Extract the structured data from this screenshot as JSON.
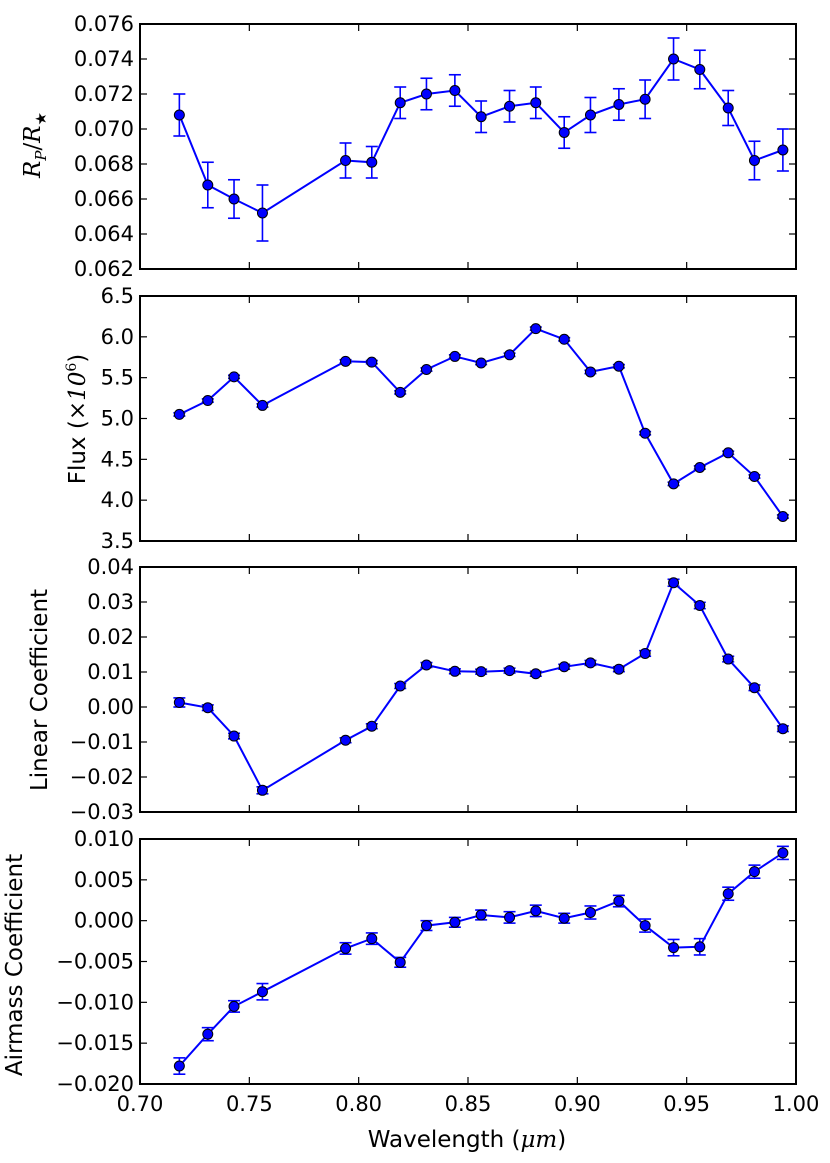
{
  "chart_data": [
    {
      "type": "line",
      "ylabel_parts": [
        "R",
        "P",
        "/",
        "R",
        "★"
      ],
      "ylim": [
        0.062,
        0.076
      ],
      "yticks": [
        "0.062",
        "0.064",
        "0.066",
        "0.068",
        "0.070",
        "0.072",
        "0.074",
        "0.076"
      ],
      "xlim": [
        0.7,
        1.0
      ],
      "grid": false,
      "series": [
        {
          "color": "#0000ff",
          "x": [
            0.718,
            0.731,
            0.743,
            0.756,
            0.794,
            0.806,
            0.819,
            0.831,
            0.844,
            0.856,
            0.869,
            0.881,
            0.894,
            0.906,
            0.919,
            0.931,
            0.944,
            0.956,
            0.969,
            0.981,
            0.994
          ],
          "y": [
            0.0708,
            0.0668,
            0.066,
            0.0652,
            0.0682,
            0.0681,
            0.0715,
            0.072,
            0.0722,
            0.0707,
            0.0713,
            0.0715,
            0.0698,
            0.0708,
            0.0714,
            0.0717,
            0.074,
            0.0734,
            0.0712,
            0.0682,
            0.0688
          ],
          "yerr": [
            0.0012,
            0.0013,
            0.0011,
            0.0016,
            0.001,
            0.0009,
            0.0009,
            0.0009,
            0.0009,
            0.0009,
            0.0009,
            0.0009,
            0.0009,
            0.001,
            0.0009,
            0.0011,
            0.0012,
            0.0011,
            0.001,
            0.0011,
            0.0012
          ]
        }
      ]
    },
    {
      "type": "line",
      "ylabel_text": "Flux (",
      "ylabel_math": "×10",
      "ylabel_sup": "6",
      "ylabel_end": ")",
      "ylim": [
        3.5,
        6.5
      ],
      "yticks": [
        "3.5",
        "4.0",
        "4.5",
        "5.0",
        "5.5",
        "6.0",
        "6.5"
      ],
      "xlim": [
        0.7,
        1.0
      ],
      "grid": false,
      "series": [
        {
          "color": "#0000ff",
          "x": [
            0.718,
            0.731,
            0.743,
            0.756,
            0.794,
            0.806,
            0.819,
            0.831,
            0.844,
            0.856,
            0.869,
            0.881,
            0.894,
            0.906,
            0.919,
            0.931,
            0.944,
            0.956,
            0.969,
            0.981,
            0.994
          ],
          "y": [
            5.05,
            5.22,
            5.51,
            5.16,
            5.7,
            5.69,
            5.32,
            5.6,
            5.76,
            5.68,
            5.78,
            6.1,
            5.97,
            5.57,
            5.64,
            4.82,
            4.2,
            4.4,
            4.58,
            4.29,
            3.8
          ],
          "yerr": [
            0.02,
            0.02,
            0.02,
            0.02,
            0.02,
            0.02,
            0.02,
            0.02,
            0.02,
            0.02,
            0.02,
            0.02,
            0.02,
            0.02,
            0.02,
            0.02,
            0.02,
            0.02,
            0.02,
            0.02,
            0.02
          ]
        }
      ]
    },
    {
      "type": "line",
      "ylabel": "Linear Coefficient",
      "ylim": [
        -0.03,
        0.04
      ],
      "yticks": [
        "−0.03",
        "−0.02",
        "−0.01",
        "0.00",
        "0.01",
        "0.02",
        "0.03",
        "0.04"
      ],
      "xlim": [
        0.7,
        1.0
      ],
      "grid": false,
      "series": [
        {
          "color": "#0000ff",
          "x": [
            0.718,
            0.731,
            0.743,
            0.756,
            0.794,
            0.806,
            0.819,
            0.831,
            0.844,
            0.856,
            0.869,
            0.881,
            0.894,
            0.906,
            0.919,
            0.931,
            0.944,
            0.956,
            0.969,
            0.981,
            0.994
          ],
          "y": [
            0.0013,
            -0.0002,
            -0.0083,
            -0.0238,
            -0.0095,
            -0.0055,
            0.006,
            0.012,
            0.0102,
            0.0101,
            0.0104,
            0.0095,
            0.0115,
            0.0126,
            0.0108,
            0.0153,
            0.0355,
            0.029,
            0.0137,
            0.0055,
            -0.0062
          ],
          "yerr": [
            0.0013,
            0.0008,
            0.0008,
            0.001,
            0.0007,
            0.0007,
            0.0007,
            0.0007,
            0.0007,
            0.0007,
            0.0007,
            0.0007,
            0.0007,
            0.0007,
            0.0007,
            0.0008,
            0.001,
            0.0009,
            0.0008,
            0.0008,
            0.0008
          ]
        }
      ]
    },
    {
      "type": "line",
      "ylabel": "Airmass Coefficient",
      "xlabel_text": "Wavelength (",
      "xlabel_math": "μm",
      "xlabel_end": ")",
      "ylim": [
        -0.02,
        0.01
      ],
      "yticks": [
        "−0.020",
        "−0.015",
        "−0.010",
        "−0.005",
        "0.000",
        "0.005",
        "0.010"
      ],
      "xlim": [
        0.7,
        1.0
      ],
      "xticks": [
        "0.70",
        "0.75",
        "0.80",
        "0.85",
        "0.90",
        "0.95",
        "1.00"
      ],
      "grid": false,
      "series": [
        {
          "color": "#0000ff",
          "x": [
            0.718,
            0.731,
            0.743,
            0.756,
            0.794,
            0.806,
            0.819,
            0.831,
            0.844,
            0.856,
            0.869,
            0.881,
            0.894,
            0.906,
            0.919,
            0.931,
            0.944,
            0.956,
            0.969,
            0.981,
            0.994
          ],
          "y": [
            -0.0178,
            -0.0139,
            -0.0105,
            -0.0087,
            -0.0034,
            -0.0022,
            -0.0051,
            -0.0006,
            -0.0002,
            0.0007,
            0.0004,
            0.0012,
            0.0003,
            0.001,
            0.0024,
            -0.0006,
            -0.0033,
            -0.0032,
            0.0033,
            0.006,
            0.0083
          ],
          "yerr": [
            0.001,
            0.0008,
            0.0007,
            0.001,
            0.0007,
            0.0007,
            0.0006,
            0.0006,
            0.0006,
            0.0006,
            0.0007,
            0.0007,
            0.0006,
            0.0008,
            0.0007,
            0.0008,
            0.001,
            0.001,
            0.0008,
            0.0008,
            0.0008
          ]
        }
      ]
    }
  ]
}
